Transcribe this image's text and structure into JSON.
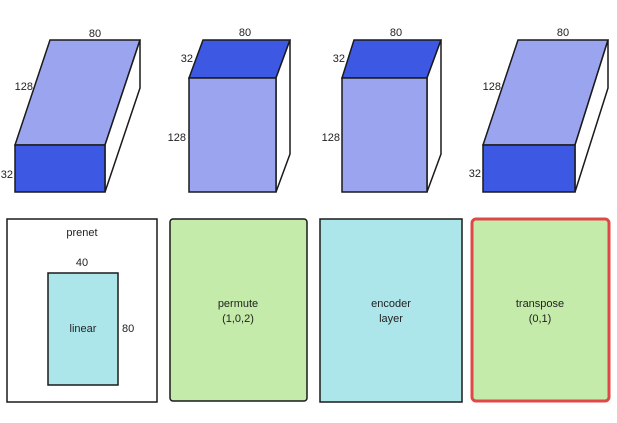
{
  "colors": {
    "light_blue": "#9ba4ee",
    "dark_blue": "#3d58e2",
    "cyan": "#ade6ea",
    "green": "#c5ebab",
    "highlight": "#e04848",
    "stroke": "#1a1a1a"
  },
  "tensors": [
    {
      "top_label": "80",
      "side_label": "128",
      "front_label": "32"
    },
    {
      "top_label": "80",
      "side_label": "32",
      "front_label": "128"
    },
    {
      "top_label": "80",
      "side_label": "32",
      "front_label": "128"
    },
    {
      "top_label": "80",
      "side_label": "128",
      "front_label": "32"
    }
  ],
  "prenet": {
    "title": "prenet",
    "linear_label": "linear",
    "width_label": "40",
    "height_label": "80"
  },
  "ops": [
    {
      "line1": "permute",
      "line2": "(1,0,2)"
    },
    {
      "line1": "encoder",
      "line2": "layer"
    },
    {
      "line1": "transpose",
      "line2": "(0,1)"
    }
  ]
}
